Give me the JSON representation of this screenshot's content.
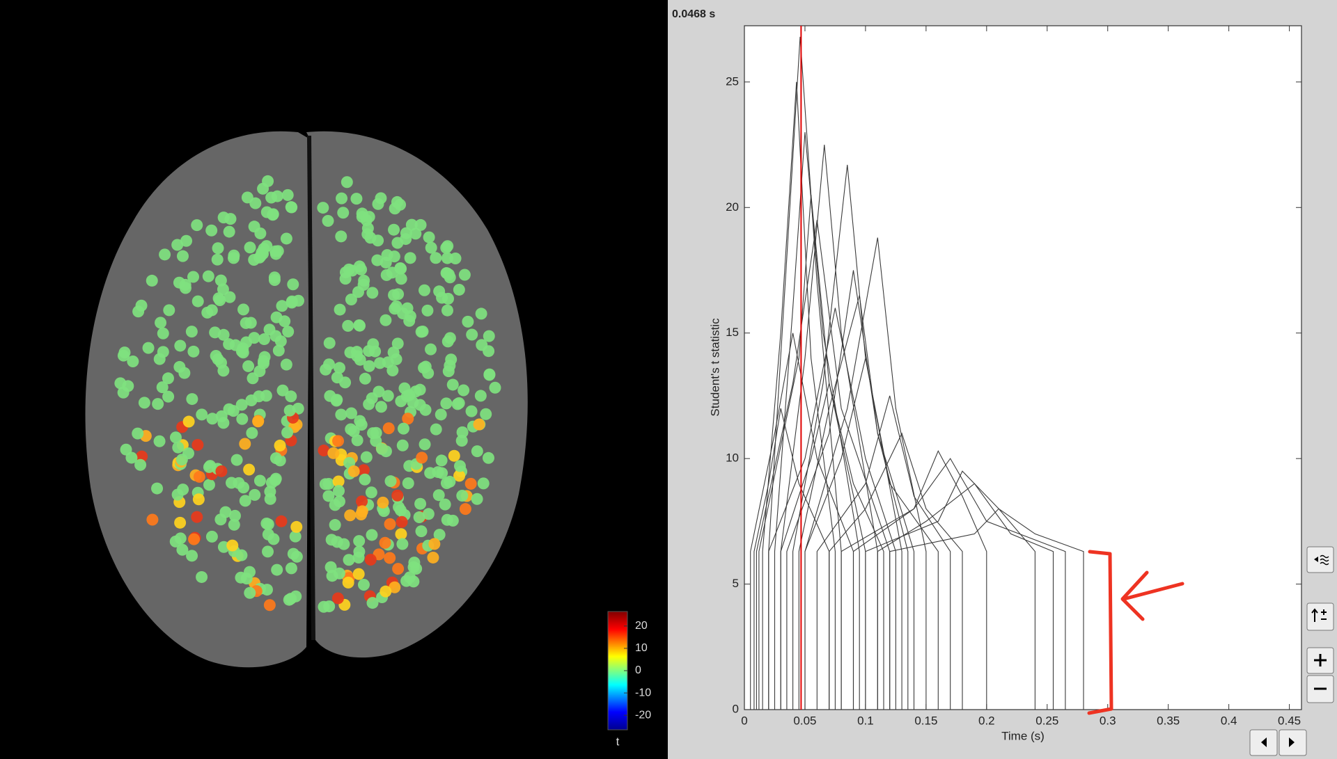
{
  "time_label": "0.0468 s",
  "colorbar": {
    "lim": [
      -26.5,
      26.5
    ],
    "ticks": [
      20,
      10,
      0,
      -10,
      -20
    ],
    "label": "t"
  },
  "chart_data": {
    "type": "line",
    "ylabel": "Student's t statistic",
    "xlabel": "Time (s)",
    "xlim": [
      0,
      0.46
    ],
    "ylim": [
      0,
      27.24
    ],
    "xticks": [
      0,
      0.05,
      0.1,
      0.15,
      0.2,
      0.25,
      0.3,
      0.35,
      0.4,
      0.45
    ],
    "yticks": [
      0,
      5,
      10,
      15,
      20,
      25
    ],
    "line_color": "#3a3a3a",
    "cursor": 0.0468,
    "cursor_color": "#e00000",
    "series": [
      {
        "x": [
          0.02,
          0.02,
          0.035,
          0.046,
          0.06,
          0.08,
          0.08
        ],
        "values": [
          0,
          6.3,
          18,
          26.8,
          17,
          6.3,
          0
        ]
      },
      {
        "x": [
          0.015,
          0.015,
          0.03,
          0.043,
          0.055,
          0.075,
          0.075
        ],
        "values": [
          0,
          6.3,
          15,
          25,
          14,
          6.3,
          0
        ]
      },
      {
        "x": [
          0.025,
          0.025,
          0.04,
          0.05,
          0.065,
          0.095,
          0.095
        ],
        "values": [
          0,
          6.3,
          16,
          23,
          15,
          6.3,
          0
        ]
      },
      {
        "x": [
          0.03,
          0.03,
          0.05,
          0.066,
          0.08,
          0.11,
          0.11
        ],
        "values": [
          0,
          6.3,
          14,
          22.5,
          15,
          6.3,
          0
        ]
      },
      {
        "x": [
          0.04,
          0.04,
          0.065,
          0.085,
          0.1,
          0.13,
          0.13
        ],
        "values": [
          0,
          6.3,
          13,
          21.7,
          14,
          6.3,
          0
        ]
      },
      {
        "x": [
          0.05,
          0.05,
          0.085,
          0.11,
          0.125,
          0.15,
          0.15
        ],
        "values": [
          0,
          6.3,
          12,
          18.8,
          12,
          6.3,
          0
        ]
      },
      {
        "x": [
          0.01,
          0.01,
          0.04,
          0.06,
          0.08,
          0.12,
          0.12
        ],
        "values": [
          0,
          6.3,
          13,
          19.5,
          12,
          6.3,
          0
        ]
      },
      {
        "x": [
          0.035,
          0.035,
          0.07,
          0.09,
          0.11,
          0.14,
          0.14
        ],
        "values": [
          0,
          6.3,
          11,
          17.5,
          11,
          6.3,
          0
        ]
      },
      {
        "x": [
          0.02,
          0.02,
          0.05,
          0.075,
          0.1,
          0.125,
          0.125
        ],
        "values": [
          0,
          6.3,
          10,
          16,
          10,
          6.3,
          0
        ]
      },
      {
        "x": [
          0.05,
          0.05,
          0.08,
          0.1,
          0.12,
          0.16,
          0.16
        ],
        "values": [
          0,
          6.3,
          10,
          14,
          9,
          6.3,
          0
        ]
      },
      {
        "x": [
          0.06,
          0.06,
          0.1,
          0.12,
          0.14,
          0.17,
          0.17
        ],
        "values": [
          0,
          6.3,
          9,
          12.5,
          8.5,
          6.3,
          0
        ]
      },
      {
        "x": [
          0.005,
          0.005,
          0.025,
          0.04,
          0.06,
          0.09,
          0.09
        ],
        "values": [
          0,
          6.3,
          11,
          15,
          10,
          6.3,
          0
        ]
      },
      {
        "x": [
          0.03,
          0.03,
          0.055,
          0.07,
          0.09,
          0.115,
          0.115
        ],
        "values": [
          0,
          6.3,
          10,
          13,
          9,
          6.3,
          0
        ]
      },
      {
        "x": [
          0.08,
          0.08,
          0.14,
          0.16,
          0.18,
          0.2,
          0.2
        ],
        "values": [
          0,
          6.3,
          8,
          10.3,
          8.5,
          6.3,
          0
        ]
      },
      {
        "x": [
          0.1,
          0.1,
          0.16,
          0.18,
          0.21,
          0.24,
          0.24
        ],
        "values": [
          0,
          6.3,
          7.5,
          9.5,
          8,
          6.3,
          0
        ]
      },
      {
        "x": [
          0.12,
          0.12,
          0.19,
          0.21,
          0.24,
          0.28,
          0.28
        ],
        "values": [
          0,
          6.3,
          7,
          8,
          7,
          6.3,
          0
        ]
      },
      {
        "x": [
          0.008,
          0.008,
          0.02,
          0.03,
          0.045,
          0.07,
          0.07
        ],
        "values": [
          0,
          6.3,
          9,
          12,
          9,
          6.3,
          0
        ]
      },
      {
        "x": [
          0.07,
          0.07,
          0.1,
          0.13,
          0.15,
          0.18,
          0.18
        ],
        "values": [
          0,
          6.3,
          8,
          11,
          8,
          6.3,
          0
        ]
      },
      {
        "x": [
          0.09,
          0.09,
          0.14,
          0.17,
          0.2,
          0.265,
          0.265
        ],
        "values": [
          0,
          6.3,
          8,
          10,
          7.5,
          6.3,
          0
        ]
      },
      {
        "x": [
          0.045,
          0.045,
          0.07,
          0.095,
          0.11,
          0.135,
          0.135
        ],
        "values": [
          0,
          6.3,
          12,
          16.5,
          11,
          6.3,
          0
        ]
      },
      {
        "x": [
          0.11,
          0.11,
          0.15,
          0.19,
          0.22,
          0.255,
          0.255
        ],
        "values": [
          0,
          6.3,
          7.5,
          9,
          7,
          6.3,
          0
        ]
      },
      {
        "x": [
          0.012,
          0.012,
          0.045,
          0.055,
          0.07,
          0.1,
          0.1
        ],
        "values": [
          0,
          6.3,
          14,
          20.5,
          13,
          6.3,
          0
        ]
      }
    ]
  }
}
